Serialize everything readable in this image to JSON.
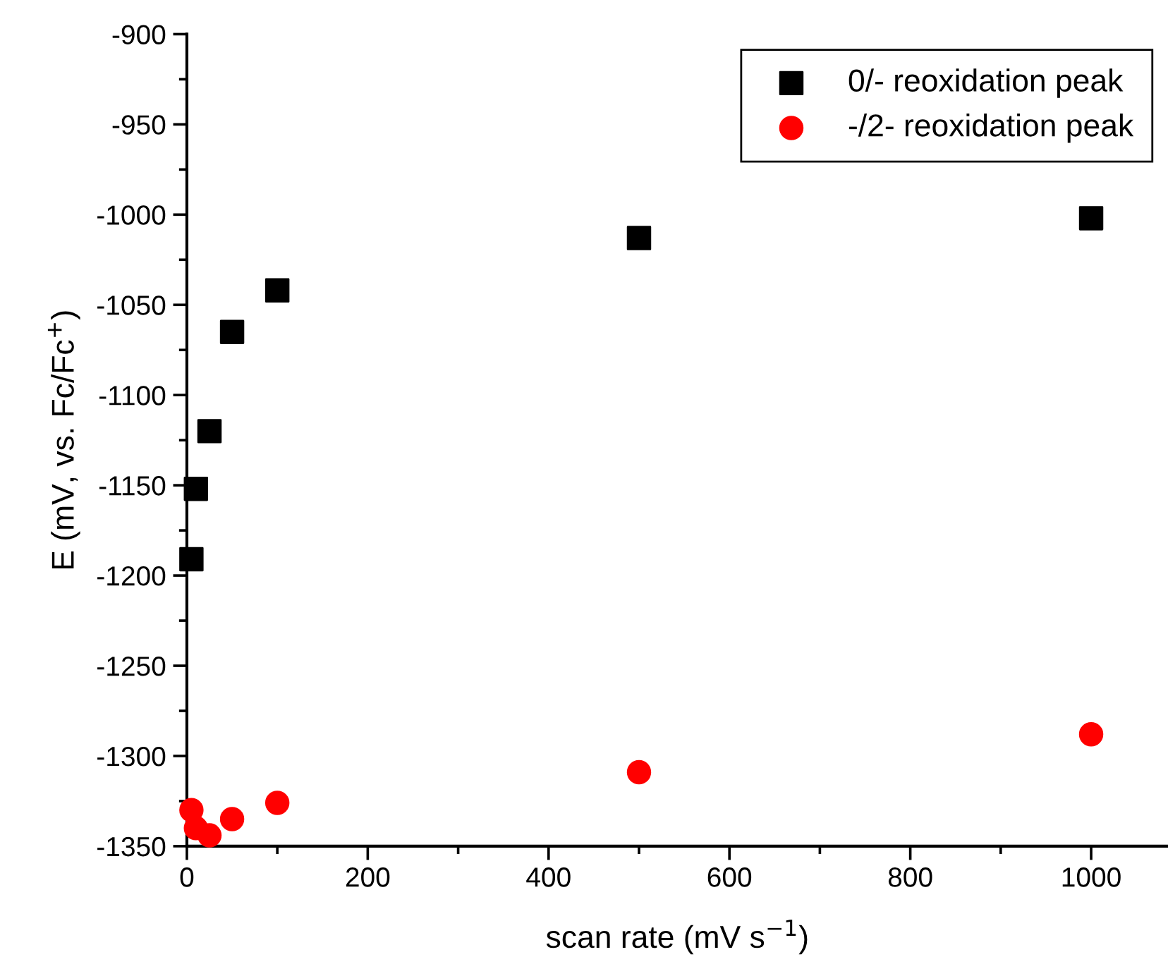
{
  "chart_data": {
    "type": "scatter",
    "xlabel": "scan rate (mV s$^{−1}$)",
    "ylabel": "E (mV, vs. Fc/Fc$^{+}$)",
    "xlim": [
      0,
      1085
    ],
    "xticks": [
      0,
      200,
      400,
      600,
      800,
      1000
    ],
    "ylim": [
      -1350,
      -900
    ],
    "yticks": [
      -1350,
      -1300,
      -1250,
      -1200,
      -1150,
      -1100,
      -1050,
      -1000,
      -950,
      -900
    ],
    "legend": "top right",
    "grid": false,
    "series": [
      {
        "name": "0/- reoxidation peak",
        "color": "#000000",
        "marker": "square",
        "x": [
          5,
          10,
          25,
          50,
          100,
          500,
          1000
        ],
        "values": [
          -1191,
          -1152,
          -1120,
          -1065,
          -1042,
          -1013,
          -1002
        ]
      },
      {
        "name": "-/2- reoxidation peak",
        "color": "#ff0000",
        "marker": "circle",
        "x": [
          5,
          10,
          25,
          50,
          100,
          500,
          1000
        ],
        "values": [
          -1330,
          -1340,
          -1344,
          -1335,
          -1326,
          -1309,
          -1288
        ]
      }
    ]
  }
}
